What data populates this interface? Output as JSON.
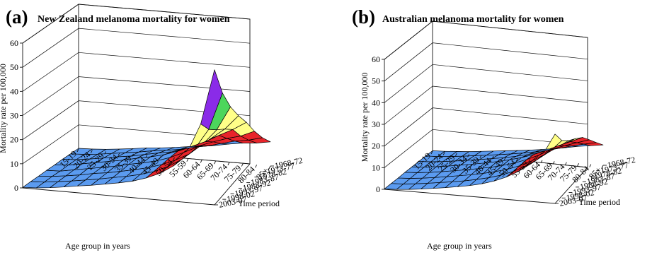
{
  "chart_data": [
    {
      "type": "surface",
      "panel": "(a)",
      "title": "New Zealand melanoma mortality for women",
      "xlabel": "Age group in years",
      "ylabel": "Mortality rate per 100,000",
      "zlabel": "Time period",
      "ylim": [
        0,
        60
      ],
      "yticks": [
        0,
        10,
        20,
        30,
        40,
        50,
        60
      ],
      "age_groups": [
        "15-19",
        "20-24",
        "25-29",
        "30-34",
        "35-39",
        "40-44",
        "45-49",
        "50-54",
        "55-59",
        "60-64",
        "65-69",
        "70-74",
        "75-79",
        "80-84",
        "85+"
      ],
      "time_periods": [
        "1968-72",
        "1973-77",
        "1978-82",
        "1983-87",
        "1988-92",
        "1993-97",
        "1998-02",
        "2003-07"
      ],
      "color_bands": [
        {
          "from": 0,
          "to": 10,
          "color": "#5b9bf0"
        },
        {
          "from": 10,
          "to": 20,
          "color": "#e8242a"
        },
        {
          "from": 20,
          "to": 30,
          "color": "#ffff88"
        },
        {
          "from": 30,
          "to": 40,
          "color": "#4cd65c"
        },
        {
          "from": 40,
          "to": 50,
          "color": "#8a2be8"
        },
        {
          "from": 50,
          "to": 60,
          "color": "#ff9a1f"
        }
      ],
      "values": [
        [
          0.3,
          0.3,
          0.4,
          0.3,
          0.4,
          0.3,
          0.3,
          0.2
        ],
        [
          0.5,
          0.6,
          0.7,
          0.8,
          0.6,
          0.7,
          0.6,
          0.5
        ],
        [
          0.9,
          1.2,
          1.5,
          1.8,
          1.6,
          1.4,
          1.3,
          1.1
        ],
        [
          1.5,
          2.0,
          2.4,
          2.8,
          2.6,
          2.3,
          2.1,
          1.9
        ],
        [
          2.2,
          2.8,
          3.4,
          3.8,
          3.6,
          3.4,
          3.0,
          2.8
        ],
        [
          3.0,
          3.6,
          4.2,
          4.8,
          4.6,
          4.2,
          3.9,
          3.6
        ],
        [
          3.5,
          4.6,
          5.4,
          6.1,
          5.9,
          5.3,
          5.0,
          4.6
        ],
        [
          4.2,
          5.3,
          6.5,
          7.2,
          7.0,
          6.5,
          6.0,
          5.6
        ],
        [
          5.0,
          6.2,
          7.5,
          8.6,
          8.3,
          7.8,
          7.3,
          6.8
        ],
        [
          5.8,
          7.6,
          9.3,
          10.6,
          10.2,
          9.6,
          9.0,
          8.6
        ],
        [
          6.5,
          8.6,
          11.0,
          13.0,
          12.8,
          12.0,
          11.6,
          11.0
        ],
        [
          7.6,
          10.1,
          13.1,
          15.5,
          15.6,
          15.0,
          14.9,
          14.6
        ],
        [
          8.5,
          11.6,
          15.0,
          18.6,
          19.6,
          19.6,
          20.1,
          20.6
        ],
        [
          9.0,
          12.5,
          16.5,
          21.5,
          24.0,
          26.0,
          28.5,
          33.0
        ],
        [
          10.0,
          14.0,
          19.0,
          25.0,
          30.0,
          36.0,
          44.0,
          56.0
        ]
      ]
    },
    {
      "type": "surface",
      "panel": "(b)",
      "title": "Australian melanoma mortality for women",
      "xlabel": "Age group in years",
      "ylabel": "Mortality rate per 100,000",
      "zlabel": "Time period",
      "ylim": [
        0,
        60
      ],
      "yticks": [
        0,
        10,
        20,
        30,
        40,
        50,
        60
      ],
      "age_groups": [
        "15-19",
        "20-24",
        "25-29",
        "30-34",
        "35-39",
        "40-44",
        "45-49",
        "50-54",
        "55-59",
        "60-64",
        "65-69",
        "70-74",
        "75-79",
        "80-84",
        "85+"
      ],
      "time_periods": [
        "1968-72",
        "1973-77",
        "1978-82",
        "1983-87",
        "1988-92",
        "1993-97",
        "1998-02",
        "2003-07"
      ],
      "color_bands": [
        {
          "from": 0,
          "to": 10,
          "color": "#5b9bf0"
        },
        {
          "from": 10,
          "to": 20,
          "color": "#e8242a"
        },
        {
          "from": 20,
          "to": 30,
          "color": "#ffff88"
        },
        {
          "from": 30,
          "to": 40,
          "color": "#4cd65c"
        }
      ],
      "values": [
        [
          0.2,
          0.3,
          0.3,
          0.3,
          0.3,
          0.2,
          0.2,
          0.2
        ],
        [
          0.4,
          0.5,
          0.6,
          0.6,
          0.6,
          0.5,
          0.4,
          0.4
        ],
        [
          0.8,
          1.0,
          1.2,
          1.3,
          1.2,
          1.1,
          1.0,
          0.9
        ],
        [
          1.2,
          1.6,
          1.9,
          2.1,
          2.0,
          1.8,
          1.7,
          1.5
        ],
        [
          1.8,
          2.3,
          2.7,
          3.0,
          2.9,
          2.7,
          2.5,
          2.3
        ],
        [
          2.4,
          3.0,
          3.5,
          3.9,
          3.8,
          3.6,
          3.3,
          3.1
        ],
        [
          3.0,
          3.7,
          4.4,
          4.9,
          4.8,
          4.5,
          4.2,
          4.0
        ],
        [
          3.6,
          4.5,
          5.3,
          6.0,
          5.9,
          5.6,
          5.3,
          5.0
        ],
        [
          4.2,
          5.4,
          6.4,
          7.3,
          7.2,
          6.9,
          6.6,
          6.3
        ],
        [
          5.0,
          6.4,
          7.7,
          8.8,
          8.8,
          8.5,
          8.2,
          8.0
        ],
        [
          5.8,
          7.6,
          9.3,
          10.7,
          10.9,
          10.6,
          10.4,
          10.3
        ],
        [
          6.8,
          9.0,
          11.2,
          13.0,
          13.4,
          13.3,
          13.3,
          13.4
        ],
        [
          7.8,
          10.5,
          13.2,
          15.6,
          16.4,
          16.6,
          16.9,
          17.3
        ],
        [
          8.6,
          11.8,
          15.0,
          18.0,
          19.4,
          20.2,
          21.0,
          22.2
        ],
        [
          9.4,
          13.0,
          16.8,
          20.4,
          22.4,
          24.0,
          26.5,
          32.0
        ]
      ]
    }
  ]
}
